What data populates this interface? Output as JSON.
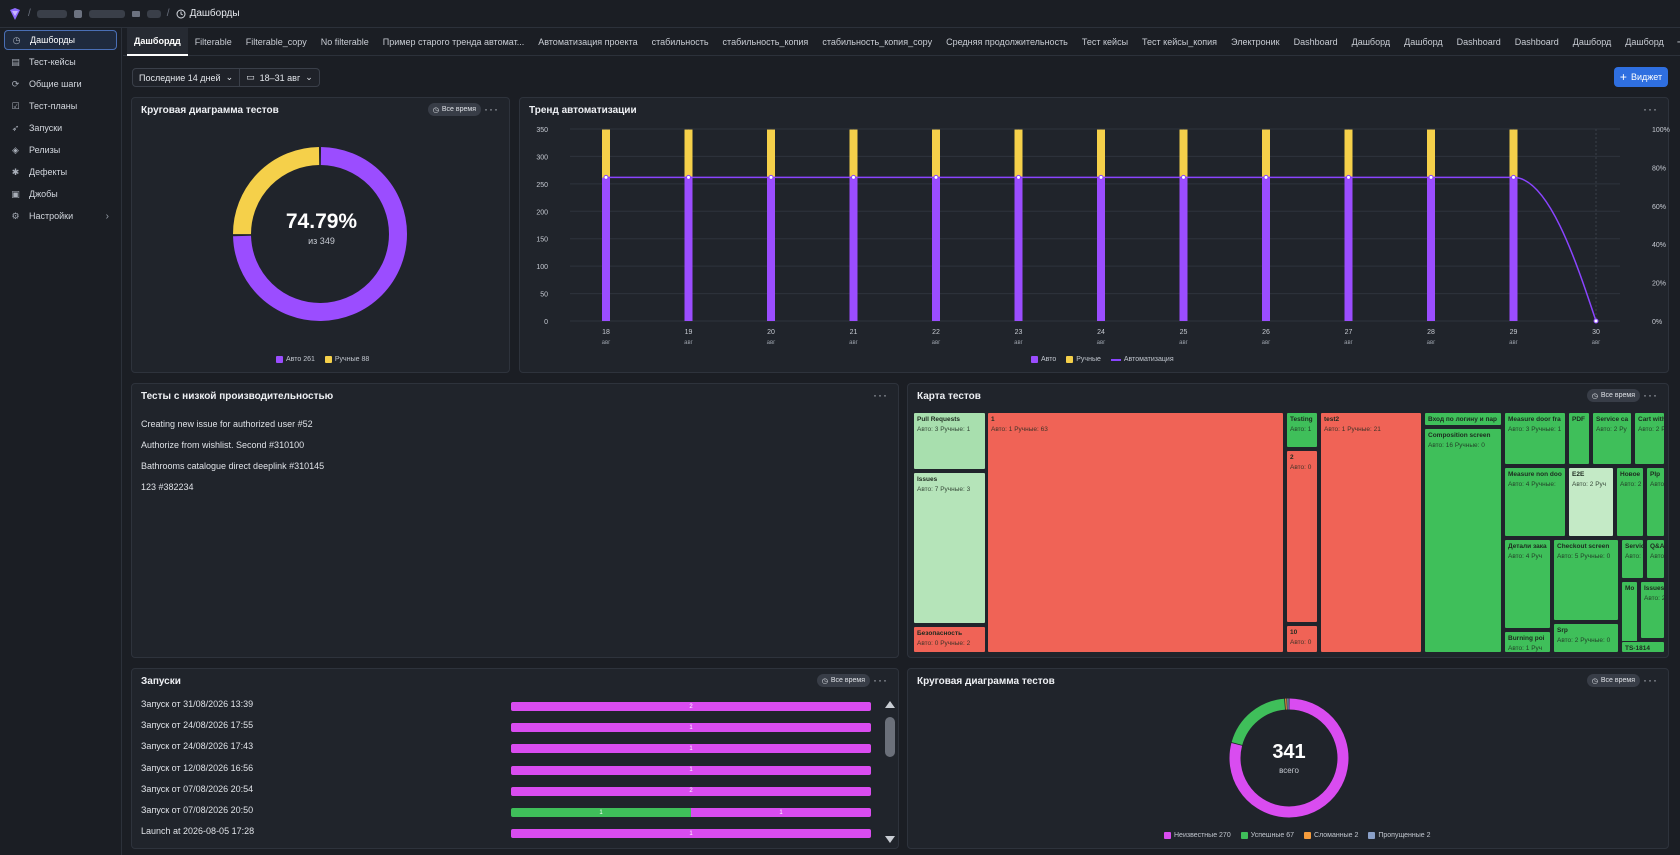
{
  "breadcrumb": {
    "current": "Дашборды"
  },
  "sidebar": {
    "items": [
      {
        "label": "Дашборды",
        "icon": "clock-icon",
        "active": true
      },
      {
        "label": "Тест-кейсы",
        "icon": "test-case-icon"
      },
      {
        "label": "Общие шаги",
        "icon": "shared-steps-icon"
      },
      {
        "label": "Тест-планы",
        "icon": "test-plan-icon"
      },
      {
        "label": "Запуски",
        "icon": "rocket-icon"
      },
      {
        "label": "Релизы",
        "icon": "box-icon"
      },
      {
        "label": "Дефекты",
        "icon": "bug-icon"
      },
      {
        "label": "Джобы",
        "icon": "jobs-icon"
      },
      {
        "label": "Настройки",
        "icon": "gear-icon",
        "chevron": true
      }
    ]
  },
  "tabs": [
    "Дашбордд",
    "Filterable",
    "Filterable_copy",
    "No filterable",
    "Пример старого тренда автомат...",
    "Автоматизация проекта",
    "стабильность",
    "стабильность_копия",
    "стабильность_копия_copy",
    "Средняя продолжительность",
    "Тест кейсы",
    "Тест кейсы_копия",
    "Электроник",
    "Dashboard",
    "Дашборд",
    "Дашборд",
    "Dashboard",
    "Dashboard",
    "Дашборд",
    "Дашборд"
  ],
  "filters": {
    "period": "Последние 14 дней",
    "dates": "18–31 авг"
  },
  "widget_button": "Виджет",
  "badge_all_time": "Все время",
  "pie1": {
    "title": "Круговая диаграмма тестов",
    "percent": "74.79%",
    "sub": "из 349",
    "auto": 261,
    "manual": 88,
    "colors": {
      "auto": "#9b4dff",
      "manual": "#f5d04a"
    },
    "legend": [
      "Авто 261",
      "Ручные 88"
    ]
  },
  "trend": {
    "title": "Тренд автоматизации",
    "legend": [
      "Авто",
      "Ручные",
      "Автоматизация"
    ],
    "colors": {
      "auto": "#9b4dff",
      "manual": "#f5d04a",
      "line": "#8a44ff"
    }
  },
  "chart_data": {
    "type": "bar",
    "stacked": true,
    "categories": [
      "18",
      "19",
      "20",
      "21",
      "22",
      "23",
      "24",
      "25",
      "26",
      "27",
      "28",
      "29",
      "30"
    ],
    "category_sublabel": "авг",
    "series": [
      {
        "name": "Авто",
        "values": [
          261,
          261,
          261,
          261,
          261,
          261,
          261,
          261,
          261,
          261,
          261,
          261,
          0
        ]
      },
      {
        "name": "Ручные",
        "values": [
          88,
          88,
          88,
          88,
          88,
          88,
          88,
          88,
          88,
          88,
          88,
          88,
          0
        ]
      },
      {
        "name": "Автоматизация",
        "type": "line",
        "axis": "right",
        "values": [
          74.8,
          74.8,
          74.8,
          74.8,
          74.8,
          74.8,
          74.8,
          74.8,
          74.8,
          74.8,
          74.8,
          74.8,
          0
        ]
      }
    ],
    "ylim": [
      0,
      350
    ],
    "yticks": [
      0,
      50,
      100,
      150,
      200,
      250,
      300,
      350
    ],
    "y2ticks": [
      "0%",
      "20%",
      "40%",
      "60%",
      "80%",
      "100%"
    ],
    "legend": "bottom"
  },
  "low": {
    "title": "Тесты с низкой производительностью",
    "items": [
      "Creating new issue for authorized user #52",
      "Authorize from wishlist. Second #310100",
      "Bathrooms catalogue direct deeplink #310145",
      "123 #382234"
    ]
  },
  "treemap": {
    "title": "Карта тестов",
    "cells": [
      {
        "t": "Pull Requests",
        "v": "Авто: 3 Ручные: 1",
        "c": "#a8dfae"
      },
      {
        "t": "Issues",
        "v": "Авто: 7 Ручные: 3",
        "c": "#b5e4b9"
      },
      {
        "t": "Безопасность",
        "v": "Авто: 0 Ручные: 2",
        "c": "#f06356"
      },
      {
        "t": "1",
        "v": "Авто: 1 Ручные: 63",
        "c": "#f06356"
      },
      {
        "t": "Testing",
        "v": "Авто: 1",
        "c": "#3fbf5a"
      },
      {
        "t": "2",
        "v": "Авто: 0",
        "c": "#f06356"
      },
      {
        "t": "10",
        "v": "Авто: 0",
        "c": "#f06356"
      },
      {
        "t": "test2",
        "v": "Авто: 1 Ручные: 21",
        "c": "#f06356"
      },
      {
        "t": "Вход по логину и пар",
        "v": "",
        "c": "#3fbf5a"
      },
      {
        "t": "Composition screen",
        "v": "Авто: 16 Ручные: 0",
        "c": "#3fbf5a"
      },
      {
        "t": "Measure door fra",
        "v": "Авто: 3 Ручные: 1",
        "c": "#3fbf5a"
      },
      {
        "t": "PDF",
        "v": "",
        "c": "#3fbf5a"
      },
      {
        "t": "Service ca",
        "v": "Авто: 2 Ру",
        "c": "#3fbf5a"
      },
      {
        "t": "Cart with c",
        "v": "Авто: 2 Ру",
        "c": "#3fbf5a"
      },
      {
        "t": "Measure non doo",
        "v": "Авто: 4 Ручные:",
        "c": "#3fbf5a"
      },
      {
        "t": "E2E",
        "v": "Авто: 2 Руч",
        "c": "#c4eac6"
      },
      {
        "t": "Новое",
        "v": "Авто: 2",
        "c": "#3fbf5a"
      },
      {
        "t": "Plp",
        "v": "Авто: 2",
        "c": "#3fbf5a"
      },
      {
        "t": "Детали зака",
        "v": "Авто: 4 Руч",
        "c": "#3fbf5a"
      },
      {
        "t": "Checkout screen",
        "v": "Авто: 5 Ручные: 0",
        "c": "#3fbf5a"
      },
      {
        "t": "Servic",
        "v": "Авто:",
        "c": "#3fbf5a"
      },
      {
        "t": "Q&A s",
        "v": "Авто:",
        "c": "#3fbf5a"
      },
      {
        "t": "Mo",
        "v": "",
        "c": "#3fbf5a"
      },
      {
        "t": "Issues1",
        "v": "Авто: 2 Р",
        "c": "#3fbf5a"
      },
      {
        "t": "Srp",
        "v": "Авто: 2 Ручные: 0",
        "c": "#3fbf5a"
      },
      {
        "t": "Burning poi",
        "v": "Авто: 1 Руч",
        "c": "#3fbf5a"
      },
      {
        "t": "TS-1814",
        "v": "",
        "c": "#3fbf5a"
      }
    ]
  },
  "launches": {
    "title": "Запуски",
    "rows": [
      {
        "label": "Запуск от 31/08/2026 13:39",
        "segs": [
          {
            "v": 2,
            "c": "#d94cf0"
          }
        ]
      },
      {
        "label": "Запуск от 24/08/2026 17:55",
        "segs": [
          {
            "v": 1,
            "c": "#d94cf0"
          }
        ]
      },
      {
        "label": "Запуск от 24/08/2026 17:43",
        "segs": [
          {
            "v": 1,
            "c": "#d94cf0"
          }
        ]
      },
      {
        "label": "Запуск от 12/08/2026 16:56",
        "segs": [
          {
            "v": 1,
            "c": "#d94cf0"
          }
        ]
      },
      {
        "label": "Запуск от 07/08/2026 20:54",
        "segs": [
          {
            "v": 2,
            "c": "#d94cf0"
          }
        ]
      },
      {
        "label": "Запуск от 07/08/2026 20:50",
        "segs": [
          {
            "v": 1,
            "c": "#3fbf5a"
          },
          {
            "v": 1,
            "c": "#d94cf0"
          }
        ]
      },
      {
        "label": "Launch at 2026-08-05 17:28",
        "segs": [
          {
            "v": 1,
            "c": "#d94cf0"
          }
        ]
      }
    ]
  },
  "pie2": {
    "title": "Круговая диаграмма тестов",
    "total": "341",
    "sub": "всего",
    "slices": [
      {
        "name": "Неизвестные",
        "v": 270,
        "c": "#d94cf0"
      },
      {
        "name": "Успешные",
        "v": 67,
        "c": "#3fbf5a"
      },
      {
        "name": "Сломанные",
        "v": 2,
        "c": "#f59c3c"
      },
      {
        "name": "Пропущенные",
        "v": 2,
        "c": "#8aa0c8"
      }
    ],
    "legend": [
      "Неизвестные 270",
      "Успешные 67",
      "Сломанные 2",
      "Пропущенные 2"
    ]
  }
}
